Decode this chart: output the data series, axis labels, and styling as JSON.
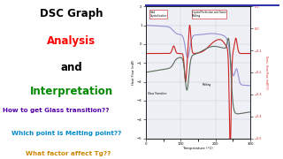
{
  "title_line1": "DSC Graph",
  "title_line2": "Analysis",
  "title_line3": "and",
  "title_line4": "Interpretation",
  "q1": "How to get Glass transition??",
  "q2": "Which point is Melting point??",
  "q3": "What factor affect Tg??",
  "bg_color": "#ffffff",
  "graph_bg": "#eef0f5",
  "label_cold_cryst": "Cold\nCrystallization",
  "label_crystal_melt": "Crystal Perfection and Some\nMelting",
  "label_glass": "Glass Transition",
  "label_melting": "Melting",
  "xlabel": "Temperature (°C)",
  "ylabel_left": "Heat Flow (mW)",
  "ylabel_right": "Deriv. Heat Flow (mW/°C)",
  "xlim": [
    0,
    300
  ],
  "ylim_left": [
    -5.0,
    2.0
  ],
  "ylim_right": [
    -0.5,
    0.1
  ],
  "color_dark": "#5a6a5a",
  "color_red": "#cc2222",
  "color_blue": "#8888cc",
  "graph_border_color": "#3333aa",
  "q1_color": "#5500aa",
  "q2_color": "#0088cc",
  "q3_color": "#cc8800"
}
